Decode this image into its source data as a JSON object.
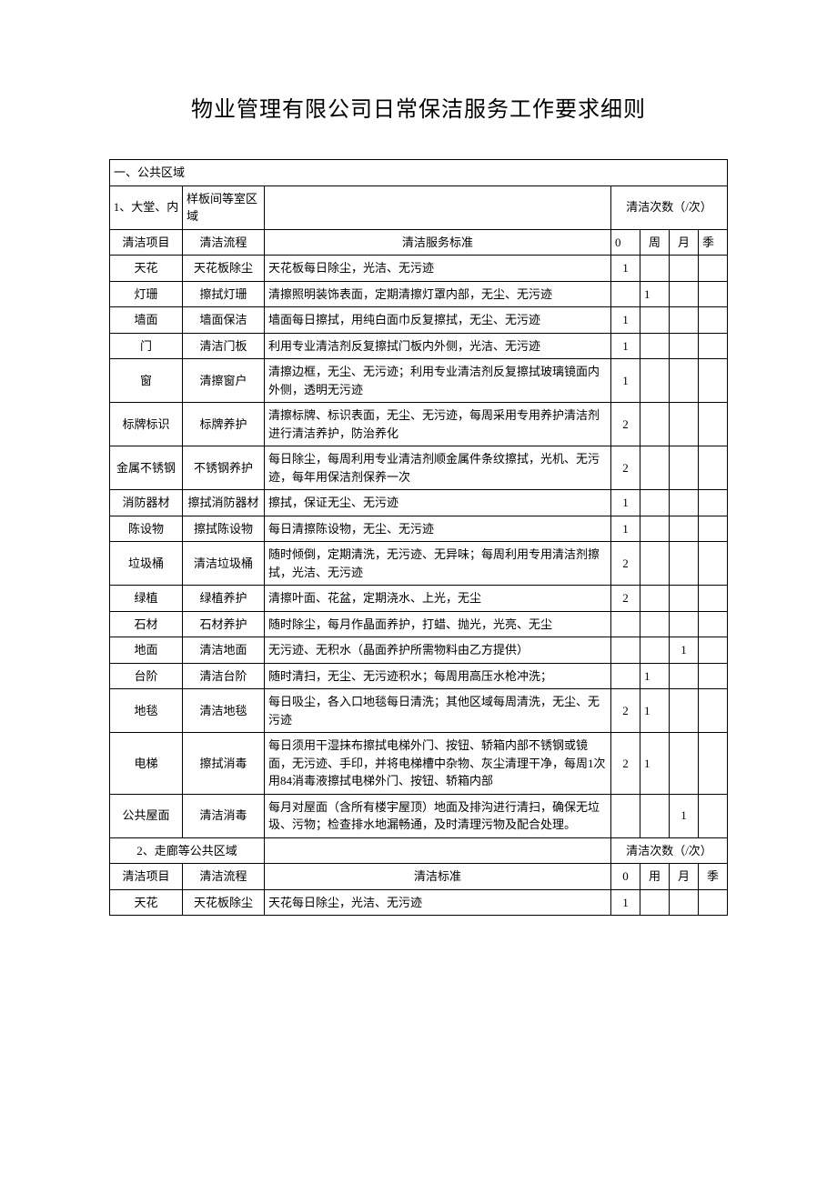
{
  "title": "物业管理有限公司日常保洁服务工作要求细则",
  "section1": {
    "header": "一、公共区域",
    "area_label": "1、大堂、内",
    "area_desc": "样板间等室区域",
    "freq_label": "清洁次数（/次）",
    "col_item": "清洁项目",
    "col_flow": "清洁流程",
    "col_std": "清洁服务标准",
    "col_0": "0",
    "col_week": "周",
    "col_month": "月",
    "col_season": "季",
    "rows": [
      {
        "item": "天花",
        "flow": "天花板除尘",
        "std": "天花板每日除尘，光洁、无污迹",
        "c0": "1",
        "cw": "",
        "cm": "",
        "cs": ""
      },
      {
        "item": "灯珊",
        "flow": "擦拭灯珊",
        "std": "清擦照明装饰表面，定期清擦灯罩内部，无尘、无污迹",
        "c0": "",
        "cw": "1",
        "cm": "",
        "cs": ""
      },
      {
        "item": "墙面",
        "flow": "墙面保洁",
        "std": "墙面每日擦拭，用纯白面巾反复擦拭，无尘、无污迹",
        "c0": "1",
        "cw": "",
        "cm": "",
        "cs": ""
      },
      {
        "item": "门",
        "flow": "清洁门板",
        "std": "利用专业清洁剂反复擦拭门板内外侧，光洁、无污迹",
        "c0": "1",
        "cw": "",
        "cm": "",
        "cs": ""
      },
      {
        "item": "窗",
        "flow": "清擦窗户",
        "std": "清擦边框，无尘、无污迹；利用专业清洁剂反复擦拭玻璃镜面内外侧，透明无污迹",
        "c0": "1",
        "cw": "",
        "cm": "",
        "cs": ""
      },
      {
        "item": "标牌标识",
        "flow": "标牌养护",
        "std": "清擦标牌、标识表面，无尘、无污迹，每周采用专用养护清洁剂进行清洁养护，防治养化",
        "c0": "2",
        "cw": "",
        "cm": "",
        "cs": ""
      },
      {
        "item": "金属不锈钢",
        "flow": "不锈钢养护",
        "std": "每日除尘，每周利用专业清洁剂顺金属件条纹擦拭，光机、无污迹，每年用保洁剂保养一次",
        "c0": "2",
        "cw": "",
        "cm": "",
        "cs": ""
      },
      {
        "item": "消防器材",
        "flow": "擦拭消防器材",
        "std": "擦拭，保证无尘、无污迹",
        "c0": "1",
        "cw": "",
        "cm": "",
        "cs": ""
      },
      {
        "item": "陈设物",
        "flow": "擦拭陈设物",
        "std": "每日清擦陈设物，无尘、无污迹",
        "c0": "1",
        "cw": "",
        "cm": "",
        "cs": ""
      },
      {
        "item": "垃圾桶",
        "flow": "清洁垃圾桶",
        "std": "随时倾倒，定期清洗，无污迹、无异味；每周利用专用清洁剂擦拭，光洁、无污迹",
        "c0": "2",
        "cw": "",
        "cm": "",
        "cs": ""
      },
      {
        "item": "绿植",
        "flow": "绿植养护",
        "std": "清擦叶面、花盆，定期浇水、上光，无尘",
        "c0": "2",
        "cw": "",
        "cm": "",
        "cs": ""
      },
      {
        "item": "石材",
        "flow": "石材养护",
        "std": "随时除尘，每月作晶面养护，打蜡、抛光，光亮、无尘",
        "c0": "",
        "cw": "",
        "cm": "",
        "cs": ""
      },
      {
        "item": "地面",
        "flow": "清洁地面",
        "std": "无污迹、无积水（晶面养护所需物料由乙方提供）",
        "c0": "",
        "cw": "",
        "cm": "1",
        "cs": ""
      },
      {
        "item": "台阶",
        "flow": "清洁台阶",
        "std": "随时清扫，无尘、无污迹积水；每周用高压水枪冲洗；",
        "c0": "",
        "cw": "1",
        "cm": "",
        "cs": ""
      },
      {
        "item": "地毯",
        "flow": "清洁地毯",
        "std": "每日吸尘，各入口地毯每日清洗；其他区域每周清洗，无尘、无污迹",
        "c0": "2",
        "cw": "1",
        "cm": "",
        "cs": ""
      },
      {
        "item": "电梯",
        "flow": "擦拭消毒",
        "std": "每日须用干湿抹布擦拭电梯外门、按钮、轿箱内部不锈钢或镜面，无污迹、手印，并将电梯槽中杂物、灰尘清理干净，每周1次用84消毒液擦拭电梯外门、按钮、轿箱内部",
        "c0": "2",
        "cw": "1",
        "cm": "",
        "cs": ""
      },
      {
        "item": "公共屋面",
        "flow": "清洁消毒",
        "std": "每月对屋面（含所有楼宇屋顶）地面及排沟进行清扫，确保无垃圾、污物；检查排水地漏畅通，及时清理污物及配合处理。",
        "c0": "",
        "cw": "",
        "cm": "1",
        "cs": ""
      }
    ]
  },
  "section2": {
    "area_label": "2、走廊等公共区域",
    "freq_label": "清洁次数（/次）",
    "col_item": "清洁项目",
    "col_flow": "清洁流程",
    "col_std": "清洁标准",
    "col_0": "0",
    "col_week": "用",
    "col_month": "月",
    "col_season": "季",
    "rows": [
      {
        "item": "天花",
        "flow": "天花板除尘",
        "std": "天花每日除尘，光洁、无污迹",
        "c0": "1",
        "cw": "",
        "cm": "",
        "cs": ""
      }
    ]
  }
}
